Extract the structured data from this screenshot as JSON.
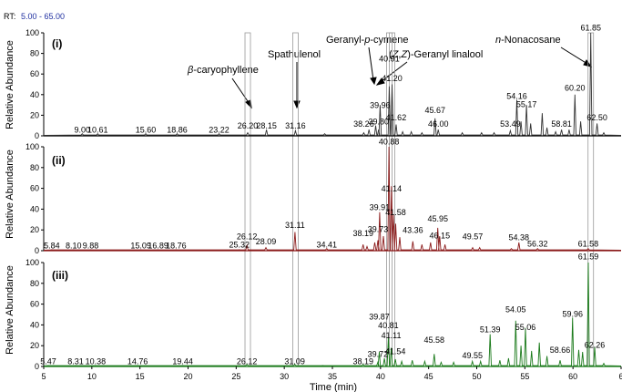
{
  "header": {
    "label": "RT:",
    "range": "5.00 - 65.00"
  },
  "ylabel": "Relative Abundance",
  "xlabel": "Time (min)",
  "xticks": [
    "5",
    "10",
    "15",
    "20",
    "25",
    "30",
    "35",
    "40",
    "45",
    "50",
    "55",
    "60",
    "6"
  ],
  "yticks": [
    "0",
    "20",
    "40",
    "60",
    "80",
    "100"
  ],
  "compounds": [
    {
      "name": "β-caryophyllene",
      "rt": 26.2
    },
    {
      "name": "Spathulenol",
      "rt": 31.16
    },
    {
      "name": "Geranyl-p-cymene",
      "rt": 40.91
    },
    {
      "name": "(Z,Z)-Geranyl linalool",
      "rt": 41.2
    },
    {
      "name": "n-Nonacosane",
      "rt": 61.85
    }
  ],
  "compound_labels": {
    "bcar_prefix": "β",
    "bcar_rest": "-caryophyllene",
    "spath": "Spathulenol",
    "gpc_a": "Geranyl-",
    "gpc_p": "p",
    "gpc_b": "-cymene",
    "zz_a": "(",
    "zz_z1": "Z",
    "zz_comma": ",",
    "zz_z2": "Z",
    "zz_b": ")-Geranyl linalool",
    "non_n": "n",
    "non_rest": "-Nonacosane"
  },
  "colors": {
    "trace_i": "#333333",
    "trace_ii": "#8b1a1a",
    "trace_iii": "#1a7a1a",
    "header_value": "#1f2fa0",
    "axis": "#000000"
  },
  "chart_data": {
    "type": "line",
    "xlim": [
      5,
      65
    ],
    "ylim": [
      0,
      100
    ],
    "xlabel": "Time (min)",
    "ylabel": "Relative Abundance",
    "panels": [
      {
        "id": "(i)",
        "peaks": [
          [
            9.0,
            2
          ],
          [
            10.61,
            2
          ],
          [
            15.6,
            2
          ],
          [
            18.86,
            2
          ],
          [
            23.22,
            2
          ],
          [
            26.2,
            3
          ],
          [
            28.15,
            6
          ],
          [
            31.16,
            5
          ],
          [
            34.2,
            2
          ],
          [
            38.26,
            3
          ],
          [
            38.8,
            6
          ],
          [
            39.5,
            10
          ],
          [
            39.8,
            6
          ],
          [
            39.96,
            30
          ],
          [
            40.91,
            48
          ],
          [
            41.2,
            50
          ],
          [
            41.62,
            11
          ],
          [
            42.3,
            4
          ],
          [
            43.2,
            4
          ],
          [
            44.3,
            3
          ],
          [
            45.67,
            17
          ],
          [
            46.0,
            6
          ],
          [
            48.5,
            3
          ],
          [
            50.5,
            3
          ],
          [
            51.8,
            3
          ],
          [
            53.49,
            5
          ],
          [
            54.16,
            35
          ],
          [
            54.6,
            14
          ],
          [
            55.17,
            30
          ],
          [
            55.6,
            12
          ],
          [
            56.8,
            22
          ],
          [
            57.3,
            8
          ],
          [
            58.2,
            4
          ],
          [
            58.81,
            6
          ],
          [
            59.6,
            6
          ],
          [
            60.2,
            40
          ],
          [
            60.8,
            14
          ],
          [
            61.85,
            100
          ],
          [
            62.5,
            12
          ],
          [
            63.2,
            3
          ]
        ],
        "labels": [
          {
            "rt": 9.0,
            "text": "9.00",
            "y": 3
          },
          {
            "rt": 10.61,
            "text": "10.61",
            "y": 3
          },
          {
            "rt": 15.6,
            "text": "15.60",
            "y": 3
          },
          {
            "rt": 18.86,
            "text": "18.86",
            "y": 3
          },
          {
            "rt": 23.22,
            "text": "23.22",
            "y": 3
          },
          {
            "rt": 26.2,
            "text": "26.20",
            "y": 7
          },
          {
            "rt": 28.15,
            "text": "28.15",
            "y": 7
          },
          {
            "rt": 31.16,
            "text": "31.16",
            "y": 7
          },
          {
            "rt": 38.26,
            "text": "38.26",
            "y": 9
          },
          {
            "rt": 39.8,
            "text": "39.80",
            "y": 11
          },
          {
            "rt": 39.96,
            "text": "39.96",
            "y": 27
          },
          {
            "rt": 40.91,
            "text": "40.91",
            "y": 72
          },
          {
            "rt": 41.2,
            "text": "41.20",
            "y": 53
          },
          {
            "rt": 41.62,
            "text": "41.62",
            "y": 15
          },
          {
            "rt": 45.67,
            "text": "45.67",
            "y": 22
          },
          {
            "rt": 46.0,
            "text": "46.00",
            "y": 9
          },
          {
            "rt": 53.49,
            "text": "53.49",
            "y": 9
          },
          {
            "rt": 54.16,
            "text": "54.16",
            "y": 36
          },
          {
            "rt": 55.17,
            "text": "55.17",
            "y": 28
          },
          {
            "rt": 58.81,
            "text": "58.81",
            "y": 9
          },
          {
            "rt": 60.2,
            "text": "60.20",
            "y": 44
          },
          {
            "rt": 61.85,
            "text": "61.85",
            "y": 102
          },
          {
            "rt": 62.5,
            "text": "62.50",
            "y": 15
          }
        ]
      },
      {
        "id": "(ii)",
        "peaks": [
          [
            5.84,
            1
          ],
          [
            8.1,
            1
          ],
          [
            9.88,
            1
          ],
          [
            15.09,
            1
          ],
          [
            16.89,
            1
          ],
          [
            18.76,
            1
          ],
          [
            25.32,
            1
          ],
          [
            26.12,
            5
          ],
          [
            28.09,
            3
          ],
          [
            31.11,
            18
          ],
          [
            34.41,
            2
          ],
          [
            38.19,
            6
          ],
          [
            38.6,
            4
          ],
          [
            39.4,
            8
          ],
          [
            39.73,
            10
          ],
          [
            39.91,
            37
          ],
          [
            40.3,
            14
          ],
          [
            40.88,
            100
          ],
          [
            41.14,
            62
          ],
          [
            41.35,
            35
          ],
          [
            41.58,
            26
          ],
          [
            42.0,
            13
          ],
          [
            43.36,
            9
          ],
          [
            44.3,
            6
          ],
          [
            45.2,
            8
          ],
          [
            45.95,
            22
          ],
          [
            46.15,
            14
          ],
          [
            46.7,
            6
          ],
          [
            49.57,
            3
          ],
          [
            50.3,
            3
          ],
          [
            53.6,
            2
          ],
          [
            54.38,
            8
          ],
          [
            56.32,
            2
          ],
          [
            61.58,
            2
          ]
        ],
        "labels": [
          {
            "rt": 5.84,
            "text": "5.84",
            "y": 2
          },
          {
            "rt": 8.1,
            "text": "8.10",
            "y": 2
          },
          {
            "rt": 9.88,
            "text": "9.88",
            "y": 2
          },
          {
            "rt": 15.09,
            "text": "15.09",
            "y": 2
          },
          {
            "rt": 16.89,
            "text": "16.89",
            "y": 2
          },
          {
            "rt": 18.76,
            "text": "18.76",
            "y": 2
          },
          {
            "rt": 25.32,
            "text": "25.32",
            "y": 3
          },
          {
            "rt": 26.12,
            "text": "26.12",
            "y": 11
          },
          {
            "rt": 28.09,
            "text": "28.09",
            "y": 6
          },
          {
            "rt": 31.11,
            "text": "31.11",
            "y": 22
          },
          {
            "rt": 34.41,
            "text": "34.41",
            "y": 3
          },
          {
            "rt": 38.19,
            "text": "38.19",
            "y": 14
          },
          {
            "rt": 39.73,
            "text": "39.73",
            "y": 18
          },
          {
            "rt": 39.91,
            "text": "39.91",
            "y": 39
          },
          {
            "rt": 40.88,
            "text": "40.88",
            "y": 102
          },
          {
            "rt": 41.14,
            "text": "41.14",
            "y": 57
          },
          {
            "rt": 41.58,
            "text": "41.58",
            "y": 34
          },
          {
            "rt": 43.36,
            "text": "43.36",
            "y": 17
          },
          {
            "rt": 45.95,
            "text": "45.95",
            "y": 28
          },
          {
            "rt": 46.15,
            "text": "46.15",
            "y": 12
          },
          {
            "rt": 49.57,
            "text": "49.57",
            "y": 11
          },
          {
            "rt": 54.38,
            "text": "54.38",
            "y": 10
          },
          {
            "rt": 56.32,
            "text": "56.32",
            "y": 4
          },
          {
            "rt": 61.58,
            "text": "61.58",
            "y": 4
          }
        ]
      },
      {
        "id": "(iii)",
        "peaks": [
          [
            5.47,
            1
          ],
          [
            8.31,
            1
          ],
          [
            10.38,
            1
          ],
          [
            14.76,
            1
          ],
          [
            19.44,
            1
          ],
          [
            26.12,
            2
          ],
          [
            31.09,
            2
          ],
          [
            34.0,
            1
          ],
          [
            38.19,
            2
          ],
          [
            39.72,
            4
          ],
          [
            39.87,
            14
          ],
          [
            40.4,
            8
          ],
          [
            40.81,
            28
          ],
          [
            41.11,
            18
          ],
          [
            41.54,
            7
          ],
          [
            42.2,
            5
          ],
          [
            43.3,
            6
          ],
          [
            44.6,
            5
          ],
          [
            45.58,
            12
          ],
          [
            46.3,
            4
          ],
          [
            47.6,
            4
          ],
          [
            49.55,
            5
          ],
          [
            50.4,
            5
          ],
          [
            51.39,
            31
          ],
          [
            52.4,
            6
          ],
          [
            53.3,
            8
          ],
          [
            54.05,
            44
          ],
          [
            54.6,
            20
          ],
          [
            55.06,
            37
          ],
          [
            55.7,
            15
          ],
          [
            56.5,
            23
          ],
          [
            57.3,
            10
          ],
          [
            58.66,
            6
          ],
          [
            59.96,
            47
          ],
          [
            60.6,
            16
          ],
          [
            61.0,
            14
          ],
          [
            61.59,
            100
          ],
          [
            62.26,
            19
          ],
          [
            63.2,
            3
          ]
        ],
        "labels": [
          {
            "rt": 5.47,
            "text": "5.47",
            "y": 2
          },
          {
            "rt": 8.31,
            "text": "8.31",
            "y": 2
          },
          {
            "rt": 10.38,
            "text": "10.38",
            "y": 2
          },
          {
            "rt": 14.76,
            "text": "14.76",
            "y": 2
          },
          {
            "rt": 19.44,
            "text": "19.44",
            "y": 2
          },
          {
            "rt": 26.12,
            "text": "26.12",
            "y": 2
          },
          {
            "rt": 31.09,
            "text": "31.09",
            "y": 2
          },
          {
            "rt": 38.19,
            "text": "38.19",
            "y": 2
          },
          {
            "rt": 39.72,
            "text": "39.72",
            "y": 9
          },
          {
            "rt": 39.87,
            "text": "39.87",
            "y": 45
          },
          {
            "rt": 40.81,
            "text": "40.81",
            "y": 37
          },
          {
            "rt": 41.11,
            "text": "41.11",
            "y": 27
          },
          {
            "rt": 41.54,
            "text": "41.54",
            "y": 12
          },
          {
            "rt": 45.58,
            "text": "45.58",
            "y": 23
          },
          {
            "rt": 49.55,
            "text": "49.55",
            "y": 8
          },
          {
            "rt": 51.39,
            "text": "51.39",
            "y": 33
          },
          {
            "rt": 54.05,
            "text": "54.05",
            "y": 52
          },
          {
            "rt": 55.06,
            "text": "55.06",
            "y": 35
          },
          {
            "rt": 58.66,
            "text": "58.66",
            "y": 13
          },
          {
            "rt": 59.96,
            "text": "59.96",
            "y": 48
          },
          {
            "rt": 61.59,
            "text": "61.59",
            "y": 103
          },
          {
            "rt": 62.26,
            "text": "62.26",
            "y": 18
          }
        ]
      }
    ]
  }
}
